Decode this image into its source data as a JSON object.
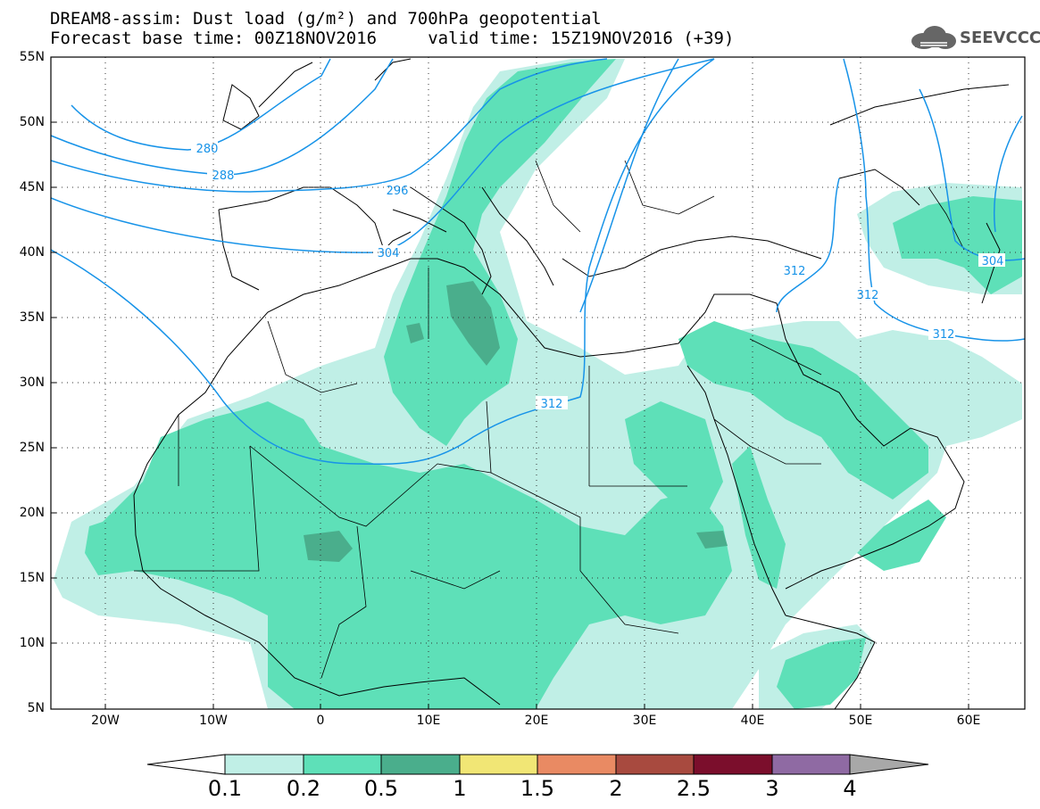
{
  "title": {
    "line1": "DREAM8-assim: Dust load (g/m²) and 700hPa geopotential",
    "line2": "Forecast base time: 00Z18NOV2016     valid time: 15Z19NOV2016 (+39)"
  },
  "logo": {
    "icon": "cloud-icon",
    "text": "SEEVCCC"
  },
  "map": {
    "lon_range": [
      -25,
      65
    ],
    "lat_range": [
      5,
      55
    ],
    "lat_labels": [
      "55N",
      "50N",
      "45N",
      "40N",
      "35N",
      "30N",
      "25N",
      "20N",
      "15N",
      "10N",
      "5N"
    ],
    "lon_labels": [
      "20W",
      "10W",
      "0",
      "10E",
      "20E",
      "30E",
      "40E",
      "50E",
      "60E"
    ],
    "contour_labels": [
      "280",
      "288",
      "296",
      "304",
      "312",
      "312",
      "312",
      "312",
      "304"
    ]
  },
  "colorbar": {
    "ticks": [
      "0.1",
      "0.2",
      "0.5",
      "1",
      "1.5",
      "2",
      "2.5",
      "3",
      "4"
    ],
    "colors": [
      "#c0efe6",
      "#5ee0b8",
      "#4aae8c",
      "#f1e675",
      "#e98a63",
      "#a84a3f",
      "#7b0e2c",
      "#8f6aa3"
    ],
    "end_low_color": "#ffffff",
    "end_high_color": "#a8a8a8"
  },
  "colors": {
    "contour": "#1793e8",
    "light_dust": "#c0efe6",
    "mid_dust": "#5ee0b8",
    "heavy_dust": "#4aae8c"
  }
}
